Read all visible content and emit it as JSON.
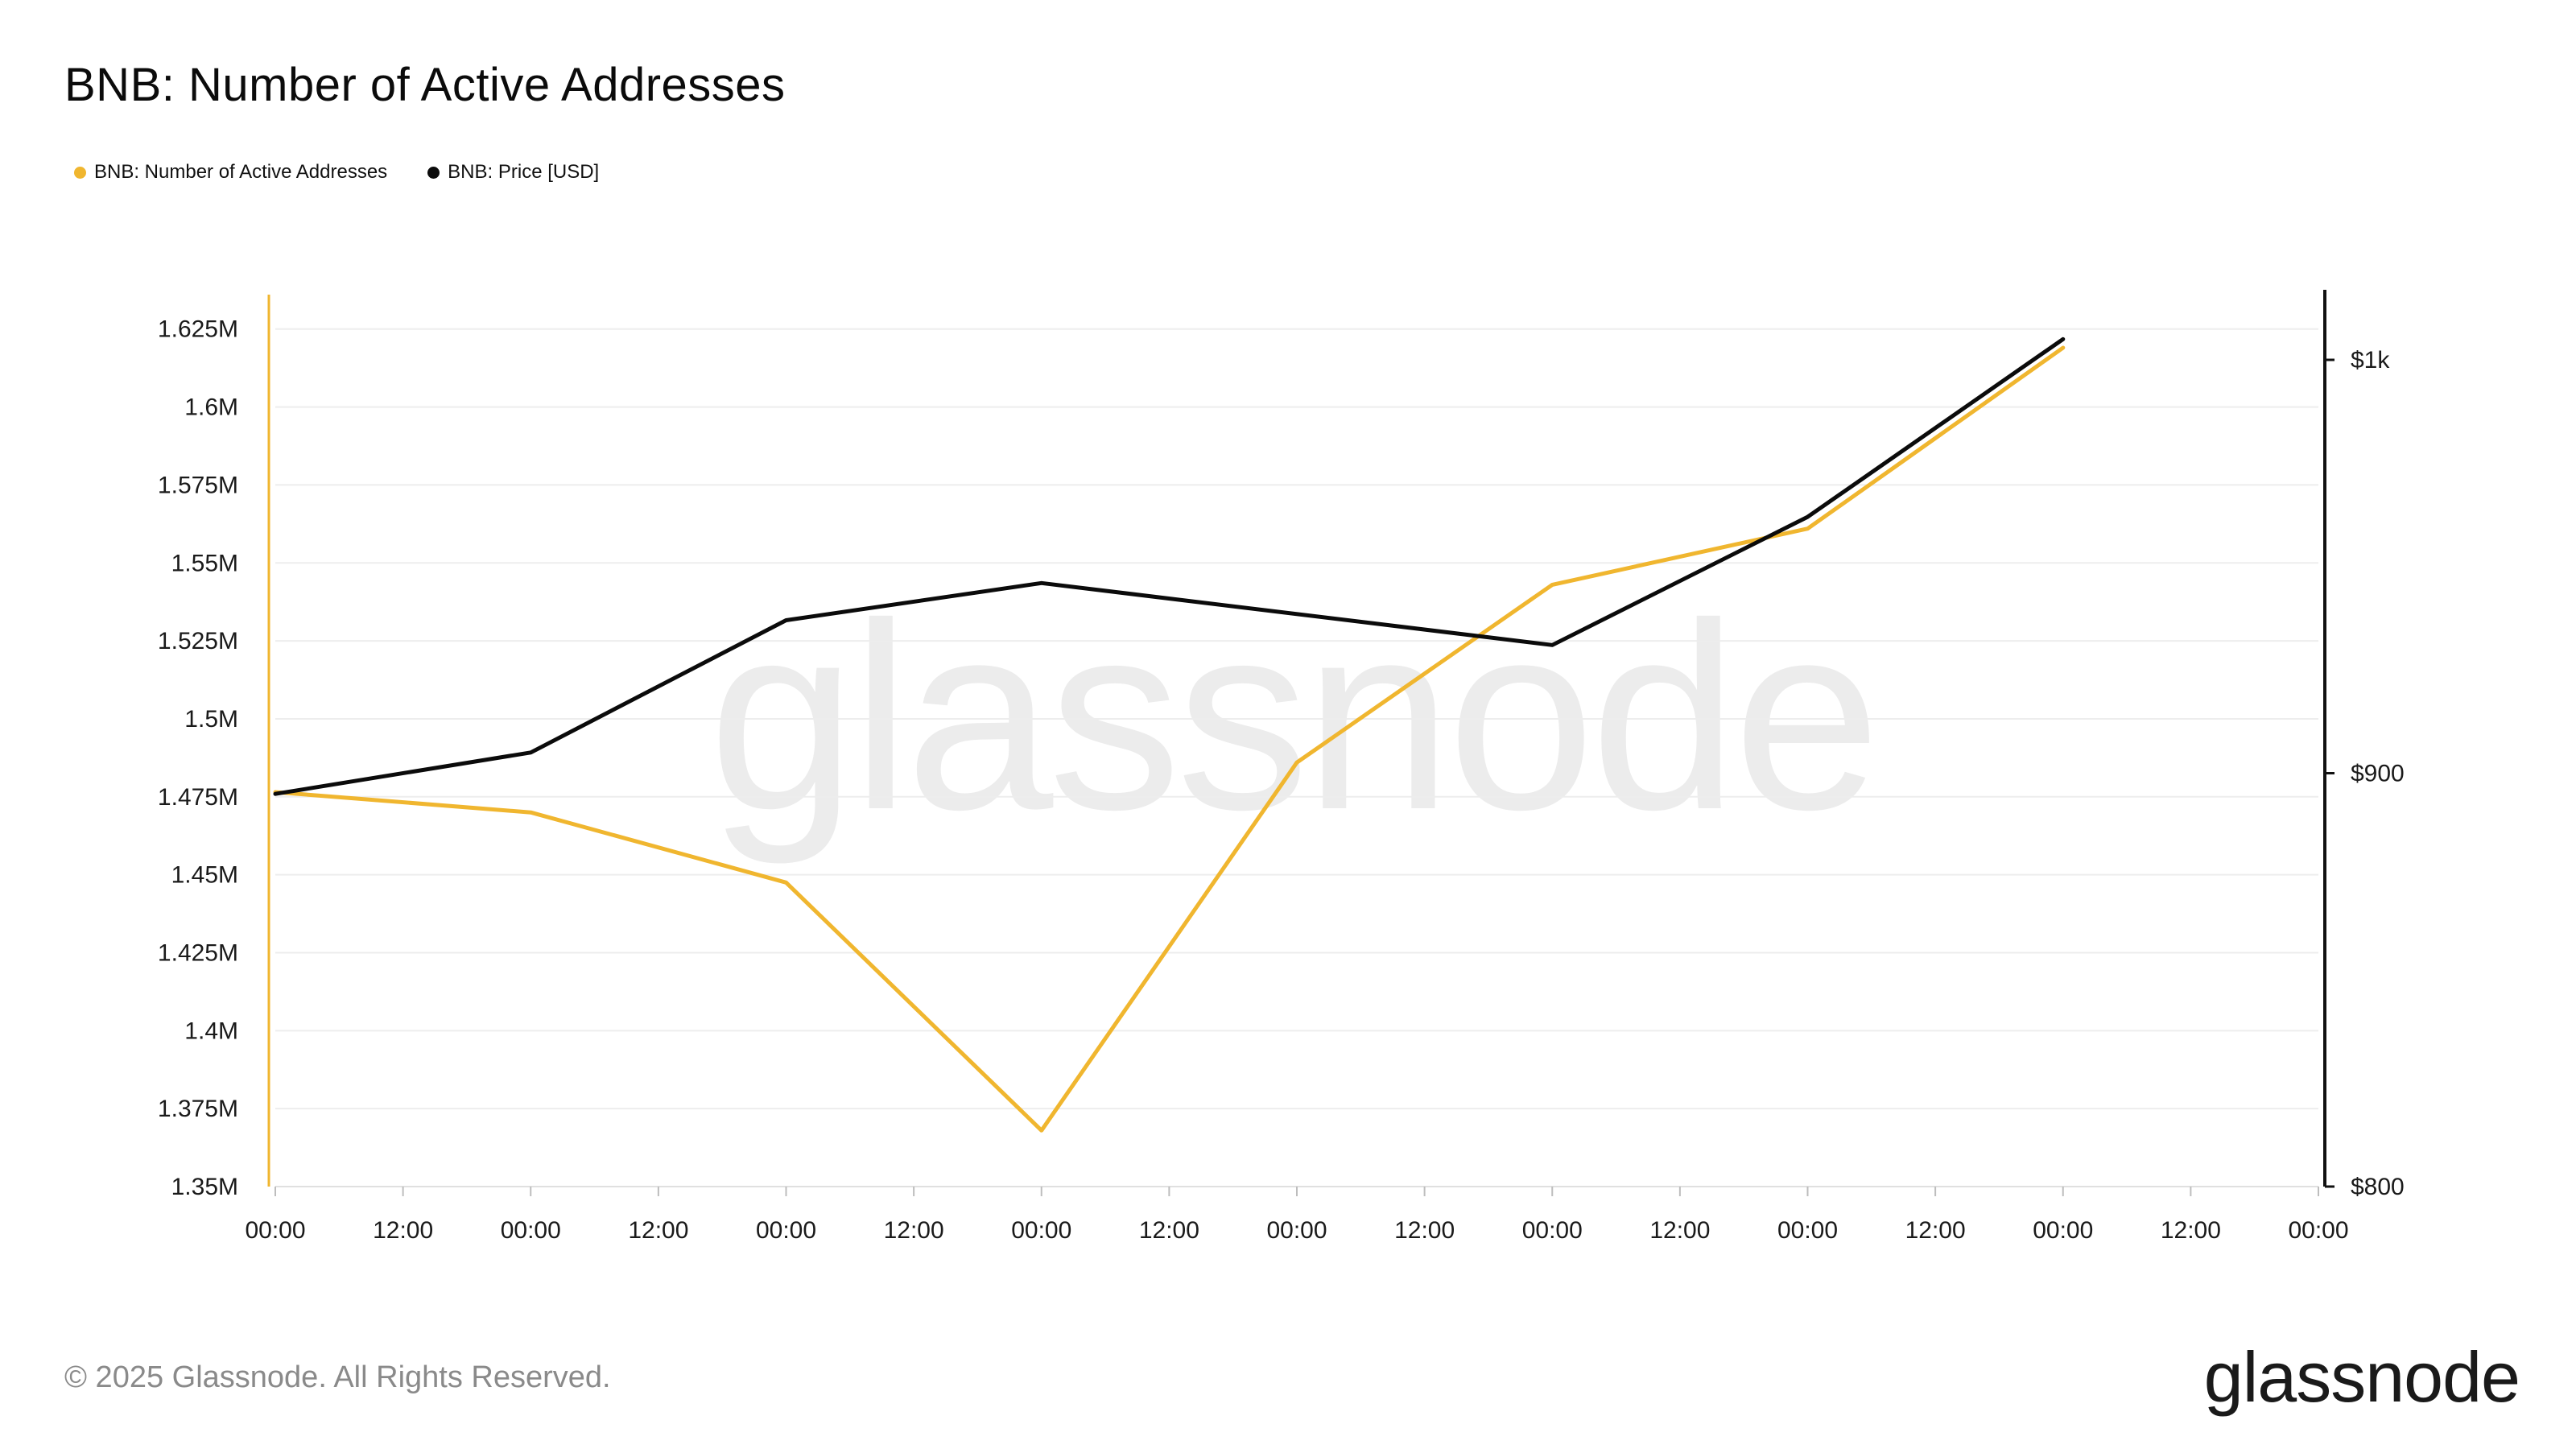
{
  "title": "BNB: Number of Active Addresses",
  "legend": [
    {
      "label": "BNB: Number of Active Addresses",
      "color": "#F0B62F"
    },
    {
      "label": "BNB: Price [USD]",
      "color": "#0b0b0b"
    }
  ],
  "watermark": "glassnode",
  "footer": {
    "copyright": "© 2025 Glassnode. All Rights Reserved.",
    "logo": "glassnode"
  },
  "chart_data": {
    "type": "line",
    "title": "BNB: Number of Active Addresses",
    "x_tick_labels": [
      "00:00",
      "12:00",
      "00:00",
      "12:00",
      "00:00",
      "12:00",
      "00:00",
      "12:00",
      "00:00",
      "12:00",
      "00:00",
      "12:00",
      "00:00",
      "12:00",
      "00:00",
      "12:00",
      "00:00"
    ],
    "y_left": {
      "ylim": [
        1350000,
        1635000
      ],
      "ticks": [
        1350000,
        1375000,
        1400000,
        1425000,
        1450000,
        1475000,
        1500000,
        1525000,
        1550000,
        1575000,
        1600000,
        1625000
      ],
      "tick_labels": [
        "1.35M",
        "1.375M",
        "1.4M",
        "1.425M",
        "1.45M",
        "1.475M",
        "1.5M",
        "1.525M",
        "1.55M",
        "1.575M",
        "1.6M",
        "1.625M"
      ]
    },
    "y_right": {
      "ylim": [
        800,
        1015
      ],
      "ticks": [
        800,
        900,
        1000
      ],
      "tick_labels": [
        "$800",
        "$900",
        "$1k"
      ]
    },
    "x_points": [
      0,
      2,
      4,
      6,
      8,
      10,
      12,
      14
    ],
    "series": [
      {
        "name": "BNB: Number of Active Addresses",
        "axis": "left",
        "color": "#F0B62F",
        "values": [
          1476500,
          1470000,
          1447500,
          1368000,
          1486000,
          1543000,
          1561000,
          1619000
        ]
      },
      {
        "name": "BNB: Price [USD]",
        "axis": "right",
        "color": "#0b0b0b",
        "values": [
          895,
          905,
          937,
          946,
          null,
          931,
          962,
          1005
        ]
      }
    ],
    "grid": true,
    "legend_position": "top-left"
  }
}
